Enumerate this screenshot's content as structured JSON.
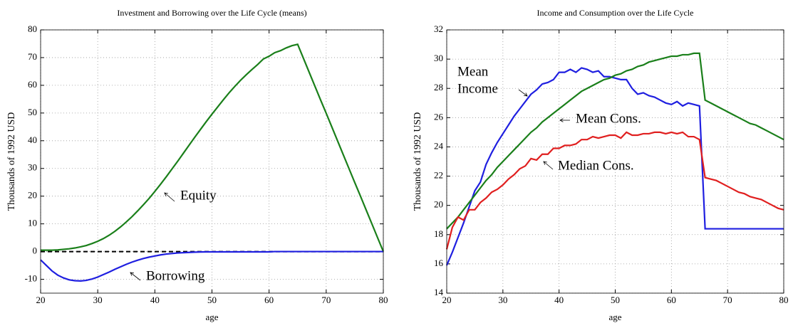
{
  "chart_data": [
    {
      "type": "line",
      "title": "Investment and Borrowing over the Life Cycle (means)",
      "xlabel": "age",
      "ylabel": "Thousands of 1992 USD",
      "xlim": [
        20,
        80
      ],
      "xticks": [
        20,
        30,
        40,
        50,
        60,
        70,
        80
      ],
      "ylim": [
        -15,
        80
      ],
      "yticks": [
        -10,
        0,
        10,
        20,
        30,
        40,
        50,
        60,
        70,
        80
      ],
      "grid": true,
      "x": [
        20,
        21,
        22,
        23,
        24,
        25,
        26,
        27,
        28,
        29,
        30,
        31,
        32,
        33,
        34,
        35,
        36,
        37,
        38,
        39,
        40,
        41,
        42,
        43,
        44,
        45,
        46,
        47,
        48,
        49,
        50,
        51,
        52,
        53,
        54,
        55,
        56,
        57,
        58,
        59,
        60,
        61,
        62,
        63,
        64,
        65,
        66,
        67,
        68,
        69,
        70,
        71,
        72,
        73,
        74,
        75,
        76,
        77,
        78,
        79,
        80
      ],
      "reference_lines": [
        {
          "y": 0,
          "style": "dashed",
          "color": "#000000"
        }
      ],
      "series": [
        {
          "name": [
            "Equity"
          ],
          "color": "#1a7f1a",
          "values": [
            0.5,
            0.5,
            0.5,
            0.6,
            0.8,
            1.0,
            1.3,
            1.7,
            2.2,
            2.9,
            3.7,
            4.7,
            5.9,
            7.3,
            8.9,
            10.7,
            12.6,
            14.7,
            16.9,
            19.2,
            21.7,
            24.3,
            27.0,
            29.8,
            32.6,
            35.5,
            38.4,
            41.3,
            44.1,
            46.9,
            49.6,
            52.2,
            54.8,
            57.3,
            59.6,
            61.8,
            63.8,
            65.7,
            67.5,
            69.5,
            70.5,
            71.8,
            72.5,
            73.5,
            74.3,
            74.8,
            69.8,
            64.8,
            59.8,
            54.8,
            49.9,
            44.9,
            39.9,
            34.9,
            29.9,
            24.9,
            20.0,
            15.0,
            10.0,
            5.0,
            0
          ]
        },
        {
          "name": [
            "Borrowing"
          ],
          "color": "#1f1fe0",
          "values": [
            -3,
            -5,
            -7,
            -8.5,
            -9.5,
            -10.2,
            -10.5,
            -10.6,
            -10.4,
            -9.9,
            -9.2,
            -8.3,
            -7.4,
            -6.4,
            -5.5,
            -4.6,
            -3.8,
            -3.1,
            -2.5,
            -2.0,
            -1.6,
            -1.2,
            -0.9,
            -0.7,
            -0.5,
            -0.4,
            -0.3,
            -0.2,
            -0.15,
            -0.1,
            -0.1,
            -0.1,
            -0.1,
            -0.1,
            -0.1,
            -0.1,
            -0.1,
            -0.1,
            -0.1,
            -0.1,
            -0.1,
            0,
            0,
            0,
            0,
            0,
            0,
            0,
            0,
            0,
            0,
            0,
            0,
            0,
            0,
            0,
            0,
            0,
            0,
            0,
            0
          ]
        }
      ]
    },
    {
      "type": "line",
      "title": "Income and Consumption over the Life Cycle",
      "xlabel": "age",
      "ylabel": "Thousands of 1992 USD",
      "xlim": [
        20,
        80
      ],
      "xticks": [
        20,
        30,
        40,
        50,
        60,
        70,
        80
      ],
      "ylim": [
        14,
        32
      ],
      "yticks": [
        14,
        16,
        18,
        20,
        22,
        24,
        26,
        28,
        30,
        32
      ],
      "grid": true,
      "x": [
        20,
        21,
        22,
        23,
        24,
        25,
        26,
        27,
        28,
        29,
        30,
        31,
        32,
        33,
        34,
        35,
        36,
        37,
        38,
        39,
        40,
        41,
        42,
        43,
        44,
        45,
        46,
        47,
        48,
        49,
        50,
        51,
        52,
        53,
        54,
        55,
        56,
        57,
        58,
        59,
        60,
        61,
        62,
        63,
        64,
        65,
        66,
        67,
        68,
        69,
        70,
        71,
        72,
        73,
        74,
        75,
        76,
        77,
        78,
        79,
        80
      ],
      "series": [
        {
          "name": [
            "Mean",
            "Income"
          ],
          "color": "#1f1fe0",
          "values": [
            15.9,
            16.8,
            17.8,
            18.8,
            19.9,
            21.0,
            21.6,
            22.8,
            23.6,
            24.3,
            24.9,
            25.5,
            26.1,
            26.6,
            27.1,
            27.6,
            27.9,
            28.3,
            28.4,
            28.6,
            29.1,
            29.1,
            29.3,
            29.1,
            29.4,
            29.3,
            29.1,
            29.2,
            28.8,
            28.8,
            28.7,
            28.6,
            28.6,
            28.0,
            27.6,
            27.7,
            27.5,
            27.4,
            27.2,
            27.0,
            26.9,
            27.1,
            26.8,
            27.0,
            26.9,
            26.8,
            18.4,
            18.4,
            18.4,
            18.4,
            18.4,
            18.4,
            18.4,
            18.4,
            18.4,
            18.4,
            18.4,
            18.4,
            18.4,
            18.4,
            18.4
          ]
        },
        {
          "name": [
            "Mean Cons."
          ],
          "color": "#1a7f1a",
          "values": [
            18.4,
            18.8,
            19.2,
            19.7,
            20.2,
            20.7,
            21.2,
            21.7,
            22.1,
            22.6,
            23.0,
            23.4,
            23.8,
            24.2,
            24.6,
            25.0,
            25.3,
            25.7,
            26.0,
            26.3,
            26.6,
            26.9,
            27.2,
            27.5,
            27.8,
            28.0,
            28.2,
            28.4,
            28.6,
            28.7,
            28.9,
            29.0,
            29.2,
            29.3,
            29.5,
            29.6,
            29.8,
            29.9,
            30.0,
            30.1,
            30.2,
            30.2,
            30.3,
            30.3,
            30.4,
            30.4,
            27.2,
            27.0,
            26.8,
            26.6,
            26.4,
            26.2,
            26.0,
            25.8,
            25.6,
            25.5,
            25.3,
            25.1,
            24.9,
            24.7,
            24.5
          ]
        },
        {
          "name": [
            "Median Cons."
          ],
          "color": "#e01f1f",
          "values": [
            17.0,
            18.5,
            19.2,
            19.0,
            19.7,
            19.7,
            20.2,
            20.5,
            20.9,
            21.1,
            21.4,
            21.8,
            22.1,
            22.5,
            22.7,
            23.2,
            23.1,
            23.5,
            23.5,
            23.9,
            23.9,
            24.1,
            24.1,
            24.2,
            24.5,
            24.5,
            24.7,
            24.6,
            24.7,
            24.8,
            24.8,
            24.6,
            25.0,
            24.8,
            24.8,
            24.9,
            24.9,
            25.0,
            25.0,
            24.9,
            25.0,
            24.9,
            25.0,
            24.7,
            24.7,
            24.5,
            21.9,
            21.8,
            21.7,
            21.5,
            21.3,
            21.1,
            20.9,
            20.8,
            20.6,
            20.5,
            20.4,
            20.2,
            20.0,
            19.8,
            19.7
          ]
        }
      ]
    }
  ]
}
